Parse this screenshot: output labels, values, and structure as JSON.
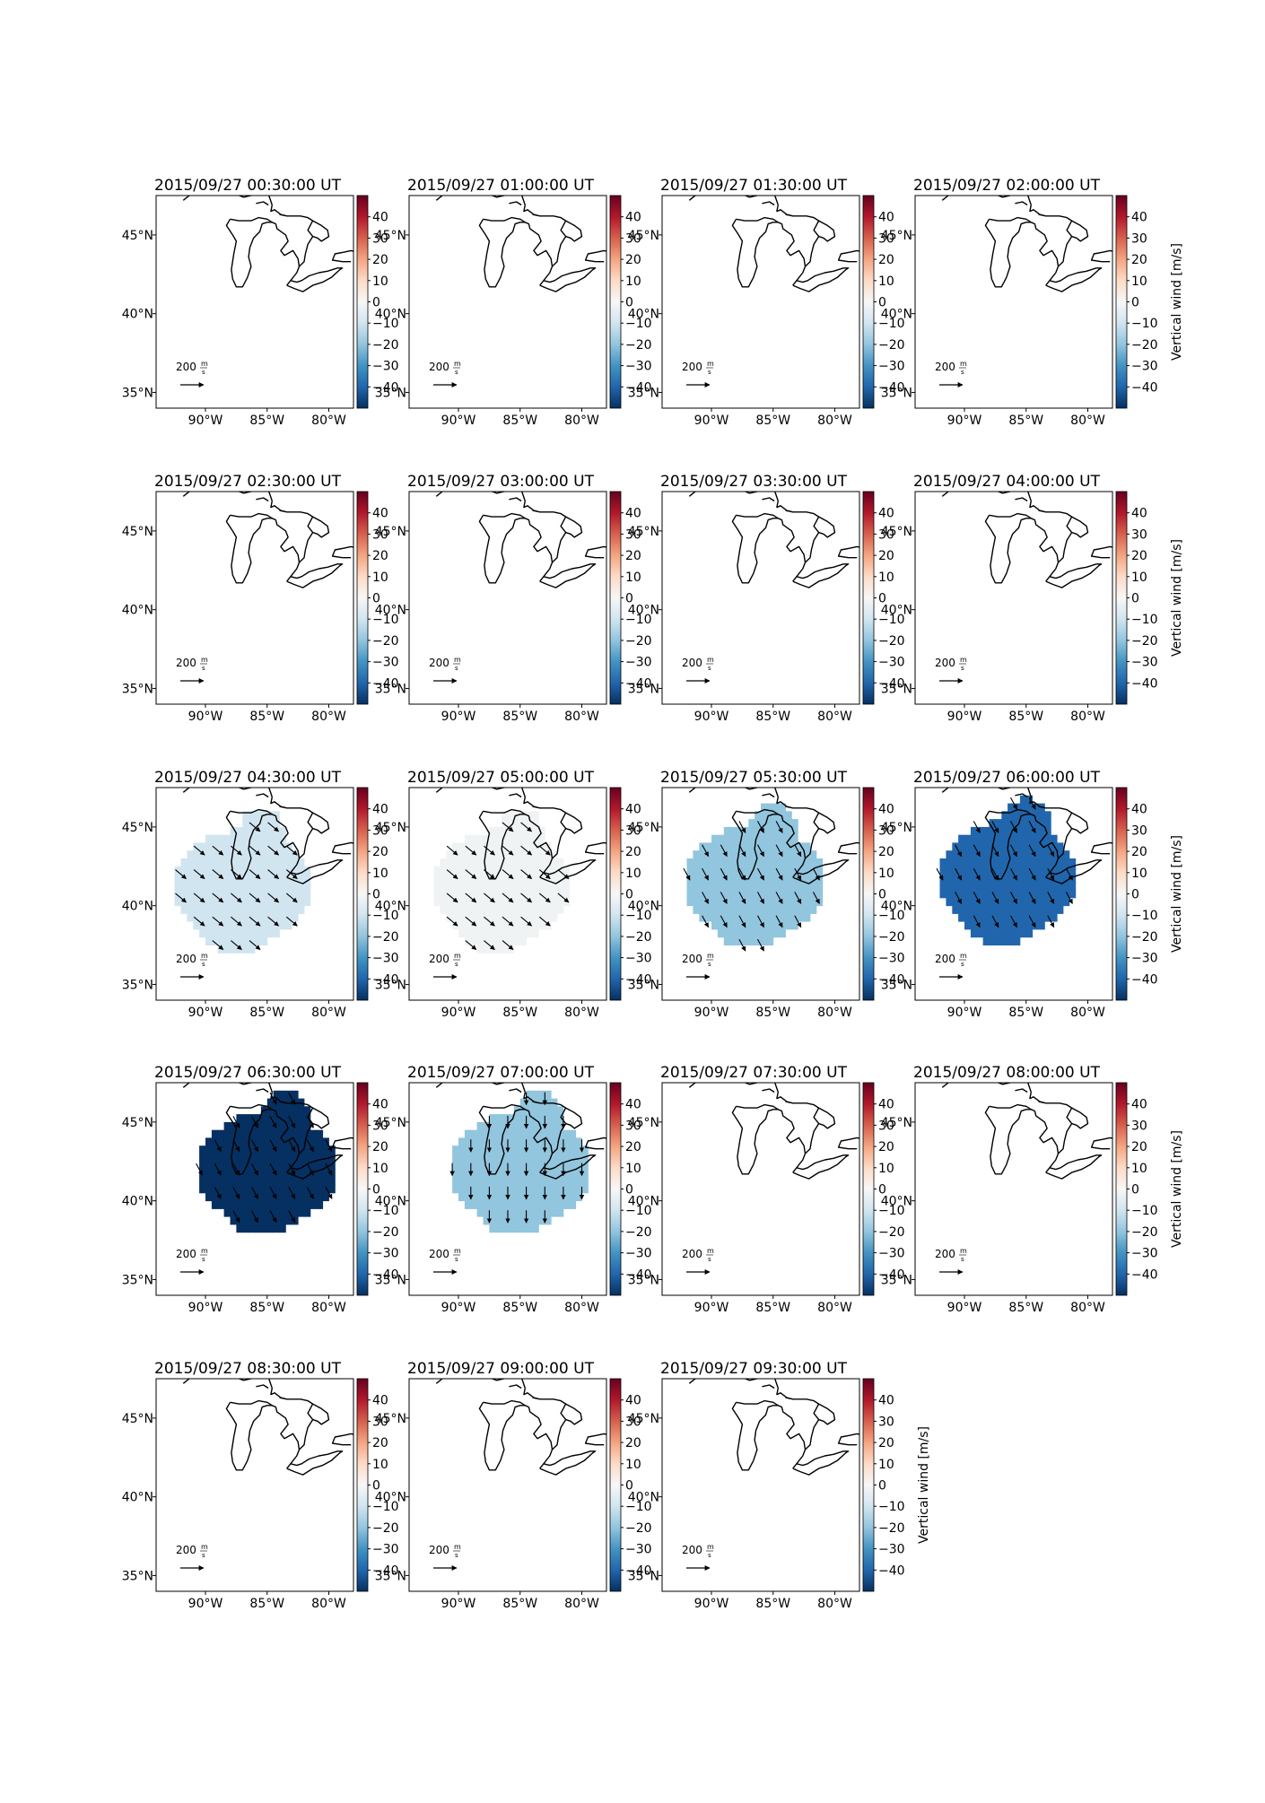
{
  "chart_data": {
    "type": "heatmap",
    "layout": {
      "rows": 5,
      "cols": 4
    },
    "colorbar": {
      "label": "Vertical wind [m/s]",
      "ticks": [
        "40",
        "30",
        "20",
        "10",
        "0",
        "−10",
        "−20",
        "−30",
        "−40"
      ],
      "range": [
        -50,
        50
      ],
      "colormap": [
        "#053061",
        "#2166ac",
        "#4393c3",
        "#92c5de",
        "#d1e5f0",
        "#f7f7f7",
        "#fddbc7",
        "#f4a582",
        "#d6604d",
        "#b2182b",
        "#67001f"
      ]
    },
    "axes": {
      "x_ticks": [
        "90°W",
        "85°W",
        "80°W"
      ],
      "x_values": [
        -90,
        -85,
        -80
      ],
      "y_ticks": [
        "45°N",
        "40°N",
        "35°N"
      ],
      "y_values": [
        45,
        40,
        35
      ],
      "lon_range": [
        -94,
        -78
      ],
      "lat_range": [
        34,
        47.5
      ]
    },
    "reference_arrow": {
      "value": "200",
      "unit_num": "m",
      "unit_den": "s"
    },
    "panels": [
      {
        "title": "2015/09/27 00:30:00 UT",
        "vertical_wind": null
      },
      {
        "title": "2015/09/27 01:00:00 UT",
        "vertical_wind": null
      },
      {
        "title": "2015/09/27 01:30:00 UT",
        "vertical_wind": null
      },
      {
        "title": "2015/09/27 02:00:00 UT",
        "vertical_wind": null
      },
      {
        "title": "2015/09/27 02:30:00 UT",
        "vertical_wind": null
      },
      {
        "title": "2015/09/27 03:00:00 UT",
        "vertical_wind": null
      },
      {
        "title": "2015/09/27 03:30:00 UT",
        "vertical_wind": null
      },
      {
        "title": "2015/09/27 04:00:00 UT",
        "vertical_wind": null
      },
      {
        "title": "2015/09/27 04:30:00 UT",
        "vertical_wind": -8,
        "fill": "#d1e5f0",
        "arrow_dir": "se",
        "region_center": [
          -87,
          41.2
        ]
      },
      {
        "title": "2015/09/27 05:00:00 UT",
        "vertical_wind": -3,
        "fill": "#f0f3f4",
        "arrow_dir": "se",
        "region_center": [
          -86.5,
          41.2
        ]
      },
      {
        "title": "2015/09/27 05:30:00 UT",
        "vertical_wind": -18,
        "fill": "#92c5de",
        "arrow_dir": "sse",
        "region_center": [
          -86.5,
          41.5
        ]
      },
      {
        "title": "2015/09/27 06:00:00 UT",
        "vertical_wind": -32,
        "fill": "#2166ac",
        "arrow_dir": "sse",
        "region_center": [
          -86.5,
          41.8
        ]
      },
      {
        "title": "2015/09/27 06:30:00 UT",
        "vertical_wind": -45,
        "fill": "#053061",
        "arrow_dir": "sse",
        "region_center": [
          -85,
          42
        ]
      },
      {
        "title": "2015/09/27 07:00:00 UT",
        "vertical_wind": -18,
        "fill": "#92c5de",
        "arrow_dir": "s",
        "region_center": [
          -85,
          42
        ]
      },
      {
        "title": "2015/09/27 07:30:00 UT",
        "vertical_wind": null
      },
      {
        "title": "2015/09/27 08:00:00 UT",
        "vertical_wind": null
      },
      {
        "title": "2015/09/27 08:30:00 UT",
        "vertical_wind": null
      },
      {
        "title": "2015/09/27 09:00:00 UT",
        "vertical_wind": null
      },
      {
        "title": "2015/09/27 09:30:00 UT",
        "vertical_wind": null
      }
    ]
  }
}
